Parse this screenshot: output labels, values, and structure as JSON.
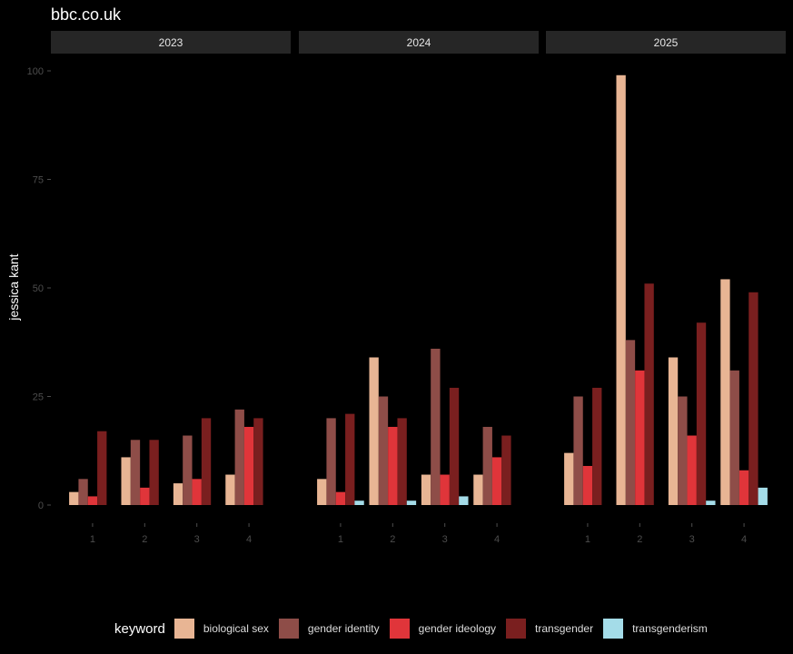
{
  "title": "bbc.co.uk",
  "colors": {
    "background": "#000000",
    "strip": "#262626",
    "axis_text": "#4d4d4d",
    "strip_text": "#e6e6e6"
  },
  "chart_data": {
    "type": "bar",
    "ylabel": "jessica kant",
    "xlabel": "",
    "ylim": [
      0,
      100
    ],
    "yticks": [
      0,
      25,
      50,
      75,
      100
    ],
    "categories": [
      "1",
      "2",
      "3",
      "4"
    ],
    "legend": {
      "title": "keyword",
      "position": "bottom"
    },
    "series": [
      {
        "name": "biological sex",
        "color": "#E8B594"
      },
      {
        "name": "gender identity",
        "color": "#8E4D48"
      },
      {
        "name": "gender ideology",
        "color": "#E0353A"
      },
      {
        "name": "transgender",
        "color": "#7A1F1F"
      },
      {
        "name": "transgenderism",
        "color": "#A4DCE8"
      }
    ],
    "panels": [
      {
        "label": "2023",
        "values": [
          [
            3,
            6,
            2,
            17,
            null
          ],
          [
            11,
            15,
            4,
            15,
            null
          ],
          [
            5,
            16,
            6,
            20,
            null
          ],
          [
            7,
            22,
            18,
            20,
            null
          ]
        ]
      },
      {
        "label": "2024",
        "values": [
          [
            6,
            20,
            3,
            21,
            1
          ],
          [
            34,
            25,
            18,
            20,
            1
          ],
          [
            7,
            36,
            7,
            27,
            2
          ],
          [
            7,
            18,
            11,
            16,
            null
          ]
        ]
      },
      {
        "label": "2025",
        "values": [
          [
            12,
            25,
            9,
            27,
            null
          ],
          [
            99,
            38,
            31,
            51,
            null
          ],
          [
            34,
            25,
            16,
            42,
            1
          ],
          [
            52,
            31,
            8,
            49,
            4
          ]
        ]
      }
    ]
  }
}
